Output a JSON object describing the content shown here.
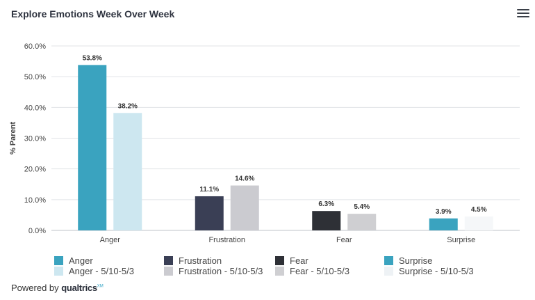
{
  "header": {
    "title": "Explore Emotions Week Over Week",
    "menu_icon": "hamburger-menu-icon"
  },
  "footer": {
    "prefix": "Powered by",
    "brand": "qualtrics",
    "mark": "XM"
  },
  "chart_data": {
    "type": "bar",
    "title": "Explore Emotions Week Over Week",
    "ylabel": "% Parent",
    "xlabel": "",
    "ylim": [
      0,
      60
    ],
    "yticks": [
      "0.0%",
      "10.0%",
      "20.0%",
      "30.0%",
      "40.0%",
      "50.0%",
      "60.0%"
    ],
    "grid": true,
    "legend_position": "bottom",
    "categories": [
      "Anger",
      "Frustration",
      "Fear",
      "Surprise"
    ],
    "groups": [
      {
        "category": "Anger",
        "bars": [
          {
            "series": "Anger",
            "value": 53.8,
            "label": "53.8%",
            "color": "#3aa3bf"
          },
          {
            "series": "Anger - 5/10-5/3",
            "value": 38.2,
            "label": "38.2%",
            "color": "#cde7f0"
          }
        ]
      },
      {
        "category": "Frustration",
        "bars": [
          {
            "series": "Frustration",
            "value": 11.1,
            "label": "11.1%",
            "color": "#3a3f55"
          },
          {
            "series": "Frustration - 5/10-5/3",
            "value": 14.6,
            "label": "14.6%",
            "color": "#cbcbd0"
          }
        ]
      },
      {
        "category": "Fear",
        "bars": [
          {
            "series": "Fear",
            "value": 6.3,
            "label": "6.3%",
            "color": "#2e3036"
          },
          {
            "series": "Fear - 5/10-5/3",
            "value": 5.4,
            "label": "5.4%",
            "color": "#cfcfd2"
          }
        ]
      },
      {
        "category": "Surprise",
        "bars": [
          {
            "series": "Surprise",
            "value": 3.9,
            "label": "3.9%",
            "color": "#3aa3bf"
          },
          {
            "series": "Surprise - 5/10-5/3",
            "value": 4.5,
            "label": "4.5%",
            "color": "#f5f7f9"
          }
        ]
      }
    ],
    "legend": [
      {
        "name": "Anger",
        "color": "#3aa3bf"
      },
      {
        "name": "Anger - 5/10-5/3",
        "color": "#cde7f0"
      },
      {
        "name": "Frustration",
        "color": "#3a3f55"
      },
      {
        "name": "Frustration - 5/10-5/3",
        "color": "#cbcbd0"
      },
      {
        "name": "Fear",
        "color": "#2e3036"
      },
      {
        "name": "Fear - 5/10-5/3",
        "color": "#cfcfd2"
      },
      {
        "name": "Surprise",
        "color": "#3aa3bf"
      },
      {
        "name": "Surprise - 5/10-5/3",
        "color": "#eef2f5"
      }
    ]
  }
}
